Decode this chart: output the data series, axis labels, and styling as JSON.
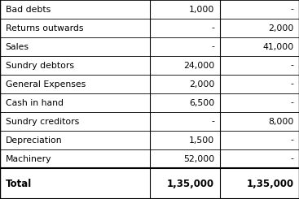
{
  "rows": [
    {
      "label": "Bad debts",
      "col1": "1,000",
      "col2": "-"
    },
    {
      "label": "Returns outwards",
      "col1": "-",
      "col2": "2,000"
    },
    {
      "label": "Sales",
      "col1": "-",
      "col2": "41,000"
    },
    {
      "label": "Sundry debtors",
      "col1": "24,000",
      "col2": "-"
    },
    {
      "label": "General Expenses",
      "col1": "2,000",
      "col2": "-"
    },
    {
      "label": "Cash in hand",
      "col1": "6,500",
      "col2": "-"
    },
    {
      "label": "Sundry creditors",
      "col1": "-",
      "col2": "8,000"
    },
    {
      "label": "Depreciation",
      "col1": "1,500",
      "col2": "-"
    },
    {
      "label": "Machinery",
      "col1": "52,000",
      "col2": "-"
    }
  ],
  "total_row": {
    "label": "Total",
    "col1": "1,35,000",
    "col2": "1,35,000"
  },
  "bg_color": "#ffffff",
  "border_color": "#000000",
  "text_color": "#000000",
  "col_splits": [
    0.0,
    0.5,
    0.735,
    1.0
  ],
  "label_fs": 7.8,
  "val_fs": 7.8,
  "total_fs": 8.5
}
